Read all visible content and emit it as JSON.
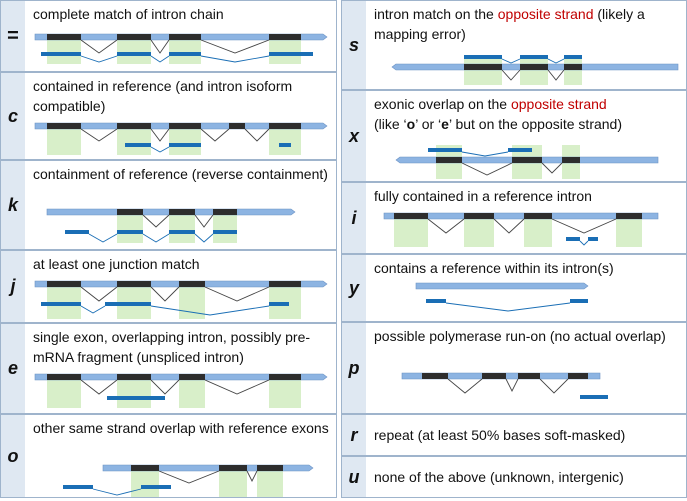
{
  "colors": {
    "ref_bar": "#8db4e2",
    "ref_bar_stroke": "#6d93c4",
    "ref_exon": "#2d2d2d",
    "query_bar": "#1a6eb5",
    "exon_shade": "#d8efc9",
    "intron_line": "#444444",
    "query_intron_line": "#1a6eb5",
    "code_bg": "#dfe8f2",
    "border": "#9fb4cc",
    "accent_red": "#c00000"
  },
  "left_rows": [
    {
      "code": "=",
      "desc": "complete match of intron chain"
    },
    {
      "code": "c",
      "desc": "contained in reference (and intron isoform compatible)"
    },
    {
      "code": "k",
      "desc": "containment of reference (reverse containment)"
    },
    {
      "code": "j",
      "desc": "at least one junction match"
    },
    {
      "code": "e",
      "desc": "single exon, overlapping intron, possibly pre-mRNA fragment (unspliced intron)"
    },
    {
      "code": "o",
      "desc": "other same strand overlap with reference exons"
    }
  ],
  "right_rows": [
    {
      "code": "s",
      "desc_pre": "intron match on the ",
      "desc_red": "opposite strand",
      "desc_post": " (likely a mapping error)"
    },
    {
      "code": "x",
      "desc_pre": "exonic overlap on the ",
      "desc_red": "opposite strand",
      "desc_post2": "(like ‘",
      "q1": "o",
      "mid": "’ or ‘",
      "q2": "e",
      "end": "’ but on the opposite strand)"
    },
    {
      "code": "i",
      "desc": "fully contained in a reference intron"
    },
    {
      "code": "y",
      "desc": "contains a reference within its intron(s)"
    },
    {
      "code": "p",
      "desc": "possible polymerase run-on (no actual overlap)"
    },
    {
      "code": "r",
      "desc": "repeat (at least 50% bases soft-masked)"
    },
    {
      "code": "u",
      "desc": "none of the above (unknown, intergenic)"
    }
  ]
}
